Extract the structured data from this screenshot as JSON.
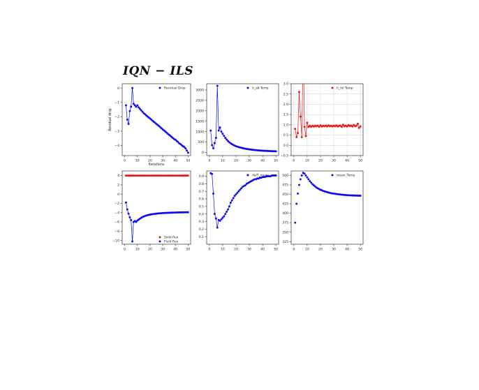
{
  "title": "IQN − ILS",
  "colors": {
    "blue": "#0a0af5",
    "red": "#f01010",
    "axis": "#333333",
    "grid": "#d8d8d8"
  },
  "chart_data": [
    {
      "type": "line",
      "xlabel": "Iterations",
      "ylabel": "Residual drop",
      "xlim": [
        -2,
        52
      ],
      "ylim": [
        -4.7,
        0.3
      ],
      "xticks": [
        0,
        10,
        20,
        30,
        40,
        50
      ],
      "yticks": [
        0,
        -1,
        -2,
        -3,
        -4
      ],
      "grid": false,
      "legend_position": "top-right",
      "series": [
        {
          "name": "Residual Drop",
          "color": "#0a0af5",
          "x": [
            1,
            2,
            3,
            4,
            5,
            6,
            7,
            8,
            9,
            10,
            11,
            12,
            13,
            14,
            15,
            16,
            17,
            18,
            19,
            20,
            21,
            22,
            23,
            24,
            25,
            26,
            27,
            28,
            29,
            30,
            31,
            32,
            33,
            34,
            35,
            36,
            37,
            38,
            39,
            40,
            41,
            42,
            43,
            44,
            45,
            46,
            47,
            48,
            49,
            50
          ],
          "y": [
            -1.2,
            -2.2,
            -2.5,
            -1.6,
            -1.3,
            0.0,
            -1.1,
            -1.2,
            -1.3,
            -1.2,
            -1.35,
            -1.45,
            -1.55,
            -1.65,
            -1.75,
            -1.82,
            -1.9,
            -1.98,
            -2.05,
            -2.12,
            -2.2,
            -2.28,
            -2.35,
            -2.42,
            -2.5,
            -2.57,
            -2.64,
            -2.72,
            -2.8,
            -2.88,
            -2.95,
            -3.02,
            -3.1,
            -3.18,
            -3.25,
            -3.32,
            -3.4,
            -3.48,
            -3.55,
            -3.6,
            -3.68,
            -3.75,
            -3.85,
            -3.9,
            -3.98,
            -4.05,
            -4.1,
            -4.2,
            -4.35,
            -4.5
          ]
        }
      ]
    },
    {
      "type": "line",
      "xlabel": "",
      "ylabel": "",
      "xlim": [
        -2,
        52
      ],
      "ylim": [
        -150,
        3300
      ],
      "xticks": [
        0,
        10,
        20,
        30,
        40,
        50
      ],
      "yticks": [
        0,
        500,
        1000,
        1500,
        2000,
        2500,
        3000
      ],
      "grid": false,
      "legend_position": "top-right",
      "series": [
        {
          "name": "h_ab Temp",
          "color": "#0a0af5",
          "x": [
            1,
            2,
            3,
            4,
            5,
            6,
            7,
            8,
            9,
            10,
            11,
            12,
            13,
            14,
            15,
            16,
            17,
            18,
            19,
            20,
            21,
            22,
            23,
            24,
            25,
            26,
            27,
            28,
            29,
            30,
            31,
            32,
            33,
            34,
            35,
            36,
            37,
            38,
            39,
            40,
            41,
            42,
            43,
            44,
            45,
            46,
            47,
            48,
            49,
            50
          ],
          "y": [
            1050,
            350,
            200,
            450,
            700,
            3200,
            1050,
            1200,
            1000,
            900,
            800,
            700,
            620,
            550,
            490,
            440,
            400,
            360,
            330,
            300,
            280,
            260,
            240,
            225,
            210,
            195,
            180,
            170,
            160,
            150,
            140,
            132,
            125,
            118,
            112,
            106,
            100,
            95,
            90,
            86,
            82,
            78,
            75,
            72,
            69,
            66,
            63,
            60,
            58,
            55
          ]
        }
      ]
    },
    {
      "type": "line",
      "xlabel": "",
      "ylabel": "",
      "xlim": [
        -2,
        52
      ],
      "ylim": [
        -0.5,
        3.0
      ],
      "xticks": [
        0,
        10,
        20,
        30,
        40,
        50
      ],
      "yticks": [
        -0.5,
        0.0,
        0.5,
        1.0,
        1.5,
        2.0,
        2.5,
        3.0
      ],
      "grid": true,
      "legend_position": "top-right",
      "series": [
        {
          "name": "h_rel Temp",
          "color": "#f01010",
          "x": [
            1,
            2,
            3,
            4,
            5,
            6,
            7,
            8,
            9,
            10,
            11,
            12,
            13,
            14,
            15,
            16,
            17,
            18,
            19,
            20,
            21,
            22,
            23,
            24,
            25,
            26,
            27,
            28,
            29,
            30,
            31,
            32,
            33,
            34,
            35,
            36,
            37,
            38,
            39,
            40,
            41,
            42,
            43,
            44,
            45,
            46,
            47,
            48,
            49,
            50
          ],
          "y": [
            0.8,
            0.4,
            0.6,
            2.6,
            1.4,
            0.4,
            5.0,
            0.9,
            0.45,
            1.1,
            0.9,
            0.95,
            0.9,
            0.95,
            0.92,
            0.95,
            0.93,
            0.96,
            0.9,
            0.97,
            0.92,
            0.95,
            0.93,
            0.96,
            0.92,
            0.97,
            0.93,
            0.95,
            0.92,
            0.96,
            0.93,
            0.97,
            0.92,
            0.95,
            0.96,
            0.9,
            1.0,
            0.93,
            0.96,
            0.92,
            0.98,
            0.94,
            0.96,
            0.92,
            0.99,
            0.93,
            0.96,
            1.05,
            0.85,
            0.92
          ]
        }
      ]
    },
    {
      "type": "line",
      "xlabel": "",
      "ylabel": "",
      "xlim": [
        -2,
        52
      ],
      "ylim": [
        -10.8,
        5.0
      ],
      "xticks": [
        0,
        10,
        20,
        30,
        40,
        50
      ],
      "yticks": [
        4,
        2,
        0,
        -2,
        -4,
        -6,
        -8,
        -10
      ],
      "grid": false,
      "legend_position": "bottom-right",
      "series": [
        {
          "name": "Solid flux",
          "color": "#f01010",
          "x": [
            1,
            2,
            3,
            4,
            5,
            6,
            7,
            8,
            9,
            10,
            11,
            12,
            13,
            14,
            15,
            16,
            17,
            18,
            19,
            20,
            21,
            22,
            23,
            24,
            25,
            26,
            27,
            28,
            29,
            30,
            31,
            32,
            33,
            34,
            35,
            36,
            37,
            38,
            39,
            40,
            41,
            42,
            43,
            44,
            45,
            46,
            47,
            48,
            49,
            50
          ],
          "y": [
            4,
            4,
            4,
            4,
            4,
            4,
            4,
            4,
            4,
            4,
            4,
            4,
            4,
            4,
            4,
            4,
            4,
            4,
            4,
            4,
            4,
            4,
            4,
            4,
            4,
            4,
            4,
            4,
            4,
            4,
            4,
            4,
            4,
            4,
            4,
            4,
            4,
            4,
            4,
            4,
            4,
            4,
            4,
            4,
            4,
            4,
            4,
            4,
            4,
            4
          ]
        },
        {
          "name": "Fluid flux",
          "color": "#0a0af5",
          "x": [
            1,
            2,
            3,
            4,
            5,
            6,
            7,
            8,
            9,
            10,
            11,
            12,
            13,
            14,
            15,
            16,
            17,
            18,
            19,
            20,
            21,
            22,
            23,
            24,
            25,
            26,
            27,
            28,
            29,
            30,
            31,
            32,
            33,
            34,
            35,
            36,
            37,
            38,
            39,
            40,
            41,
            42,
            43,
            44,
            45,
            46,
            47,
            48,
            49,
            50
          ],
          "y": [
            -1.8,
            -3.3,
            -4.2,
            -5.0,
            -5.6,
            -10.2,
            -6.0,
            -5.8,
            -6.0,
            -5.7,
            -5.5,
            -5.3,
            -5.1,
            -4.95,
            -4.82,
            -4.72,
            -4.62,
            -4.55,
            -4.48,
            -4.42,
            -4.36,
            -4.32,
            -4.28,
            -4.24,
            -4.21,
            -4.18,
            -4.15,
            -4.13,
            -4.11,
            -4.09,
            -4.07,
            -4.05,
            -4.04,
            -4.03,
            -4.02,
            -4.01,
            -4.0,
            -3.99,
            -3.98,
            -3.97,
            -3.96,
            -3.95,
            -3.94,
            -3.94,
            -3.93,
            -3.93,
            -3.92,
            -3.92,
            -3.91,
            -3.91
          ]
        }
      ]
    },
    {
      "type": "line",
      "xlabel": "",
      "ylabel": "",
      "xlim": [
        -2,
        52
      ],
      "ylim": [
        0.0,
        0.97
      ],
      "xticks": [
        0,
        10,
        20,
        30,
        40,
        50
      ],
      "yticks": [
        0.1,
        0.2,
        0.3,
        0.4,
        0.5,
        0.6,
        0.7,
        0.8,
        0.9
      ],
      "grid": false,
      "legend_position": "top-right",
      "series": [
        {
          "name": "delT_mean",
          "color": "#0a0af5",
          "x": [
            1,
            2,
            3,
            4,
            5,
            6,
            7,
            8,
            9,
            10,
            11,
            12,
            13,
            14,
            15,
            16,
            17,
            18,
            19,
            20,
            21,
            22,
            23,
            24,
            25,
            26,
            27,
            28,
            29,
            30,
            31,
            32,
            33,
            34,
            35,
            36,
            37,
            38,
            39,
            40,
            41,
            42,
            43,
            44,
            45,
            46,
            47,
            48,
            49,
            50
          ],
          "y": [
            0.94,
            0.93,
            0.67,
            0.4,
            0.34,
            0.22,
            0.32,
            0.31,
            0.33,
            0.35,
            0.37,
            0.4,
            0.43,
            0.46,
            0.5,
            0.55,
            0.58,
            0.61,
            0.64,
            0.66,
            0.68,
            0.7,
            0.72,
            0.74,
            0.76,
            0.77,
            0.78,
            0.8,
            0.81,
            0.82,
            0.83,
            0.84,
            0.85,
            0.86,
            0.86,
            0.87,
            0.87,
            0.88,
            0.88,
            0.89,
            0.89,
            0.89,
            0.9,
            0.9,
            0.9,
            0.9,
            0.91,
            0.91,
            0.91,
            0.91
          ]
        }
      ]
    },
    {
      "type": "scatter",
      "xlabel": "",
      "ylabel": "",
      "xlim": [
        -2,
        52
      ],
      "ylim": [
        318,
        512
      ],
      "xticks": [
        0,
        10,
        20,
        30,
        40,
        50
      ],
      "yticks": [
        325,
        350,
        375,
        400,
        425,
        450,
        475,
        500
      ],
      "grid": false,
      "legend_position": "top-right",
      "series": [
        {
          "name": "mean_Temp",
          "color": "#0a0af5",
          "x": [
            1,
            2,
            3,
            4,
            5,
            6,
            7,
            8,
            9,
            10,
            11,
            12,
            13,
            14,
            15,
            16,
            17,
            18,
            19,
            20,
            21,
            22,
            23,
            24,
            25,
            26,
            27,
            28,
            29,
            30,
            31,
            32,
            33,
            34,
            35,
            36,
            37,
            38,
            39,
            40,
            41,
            42,
            43,
            44,
            45,
            46,
            47,
            48,
            49,
            50
          ],
          "y": [
            375,
            425,
            452,
            475,
            490,
            500,
            507,
            505,
            500,
            495,
            490,
            485,
            481,
            477,
            474,
            471,
            468,
            466,
            464,
            462,
            461,
            459,
            458,
            457,
            456,
            455,
            454,
            453,
            452.5,
            452,
            451.5,
            451,
            450.5,
            450,
            449.6,
            449.2,
            448.8,
            448.5,
            448.2,
            448,
            447.7,
            447.5,
            447.3,
            447.1,
            447,
            446.8,
            446.7,
            446.6,
            446.5,
            446.4
          ]
        }
      ]
    }
  ]
}
